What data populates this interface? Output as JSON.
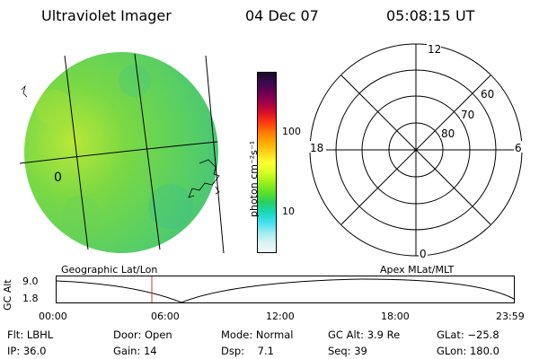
{
  "header": {
    "title": "Ultraviolet Imager",
    "date": "04 Dec 07",
    "time": "05:08:15 UT"
  },
  "colorbar": {
    "unit_label": "photon cm⁻²s⁻¹",
    "ticks": [
      "100",
      "10"
    ],
    "colors": [
      "#1a0a2a",
      "#3a0a4a",
      "#6a0050",
      "#a0004a",
      "#d8102a",
      "#ff3a10",
      "#ff7a00",
      "#ffaa00",
      "#ffd21a",
      "#ffff30",
      "#d8ff20",
      "#9cf01a",
      "#5ee028",
      "#26d060",
      "#18d8b8",
      "#40e0f0",
      "#9ceaf0",
      "#d8f2f2",
      "#f0f8f8"
    ]
  },
  "image_map": {
    "lon_label": "0",
    "disk_color": "#6ed84a"
  },
  "polar_plot": {
    "clock_labels": [
      "12",
      "18",
      "6",
      "0"
    ],
    "lat_labels": [
      "60",
      "70",
      "80"
    ]
  },
  "timeline": {
    "left_label": "Geographic Lat/Lon",
    "right_label": "Apex MLat/MLT",
    "ylabel": "GC Alt",
    "yticks": [
      "9.0",
      "1.8"
    ],
    "xticks": [
      "00:00",
      "06:00",
      "12:00",
      "18:00",
      "23:59"
    ]
  },
  "info": {
    "row1": [
      "Flt: LBHL",
      "Door: Open",
      "Mode: Normal",
      "GC Alt: 3.9 Re",
      "GLat: −25.8"
    ],
    "row2": [
      "IP: 36.0",
      "Gain: 14",
      "Dsp:    7.1",
      "Seq: 39",
      "GLon: 180.0"
    ]
  },
  "colors": {
    "accent_line": "#c04040"
  }
}
